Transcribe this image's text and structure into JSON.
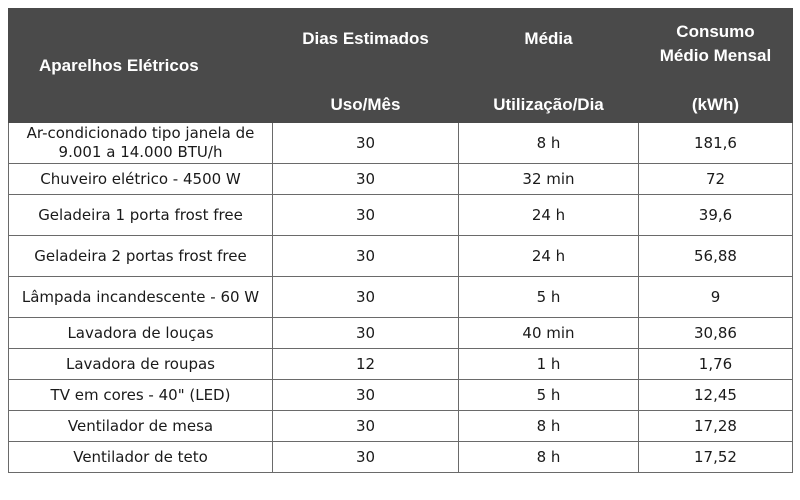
{
  "header": {
    "col1": "Aparelhos Elétricos",
    "col2_top": "Dias Estimados",
    "col2_bottom": "Uso/Mês",
    "col3_top": "Média",
    "col3_bottom": "Utilização/Dia",
    "col4_top_line1": "Consumo",
    "col4_top_line2": "Médio Mensal",
    "col4_bottom": "(kWh)"
  },
  "rows": [
    {
      "name": "Ar-condicionado tipo janela de 9.001 a 14.000 BTU/h",
      "dias": "30",
      "media": "8 h",
      "consumo": "181,6"
    },
    {
      "name": "Chuveiro elétrico - 4500 W",
      "dias": "30",
      "media": "32 min",
      "consumo": "72"
    },
    {
      "name": "Geladeira 1 porta frost free",
      "dias": "30",
      "media": "24 h",
      "consumo": "39,6"
    },
    {
      "name": "Geladeira 2 portas frost free",
      "dias": "30",
      "media": "24 h",
      "consumo": "56,88"
    },
    {
      "name": "Lâmpada incandescente - 60 W",
      "dias": "30",
      "media": "5 h",
      "consumo": "9"
    },
    {
      "name": "Lavadora de louças",
      "dias": "30",
      "media": "40 min",
      "consumo": "30,86"
    },
    {
      "name": "Lavadora de roupas",
      "dias": "12",
      "media": "1 h",
      "consumo": "1,76"
    },
    {
      "name": "TV em cores - 40\" (LED)",
      "dias": "30",
      "media": "5 h",
      "consumo": "12,45"
    },
    {
      "name": "Ventilador de mesa",
      "dias": "30",
      "media": "8 h",
      "consumo": "17,28"
    },
    {
      "name": "Ventilador de teto",
      "dias": "30",
      "media": "8 h",
      "consumo": "17,52"
    }
  ]
}
